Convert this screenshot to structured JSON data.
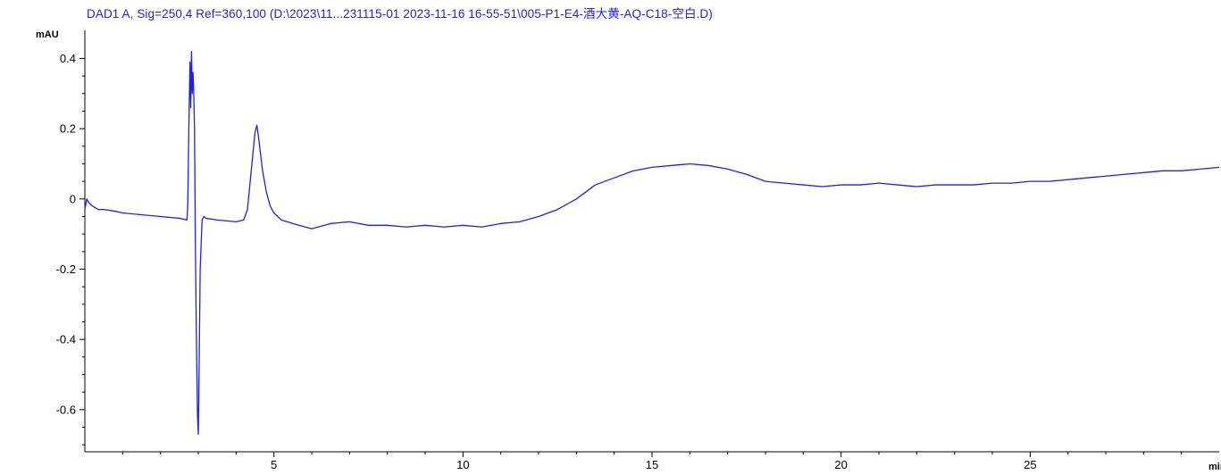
{
  "chart_data": {
    "type": "line",
    "title": "DAD1 A, Sig=250,4 Ref=360,100 (D:\\2023\\11...231115-01 2023-11-16 16-55-51\\005-P1-E4-酒大黄-AQ-C18-空白.D)",
    "xlabel": "min",
    "ylabel": "mAU",
    "xlim": [
      0,
      30
    ],
    "ylim": [
      -0.72,
      0.48
    ],
    "x_ticks": [
      5,
      10,
      15,
      20,
      25
    ],
    "x_tick_labels": [
      "5",
      "10",
      "15",
      "20",
      "25"
    ],
    "y_ticks": [
      -0.6,
      -0.4,
      -0.2,
      0,
      0.2,
      0.4
    ],
    "y_tick_labels": [
      "-0.6",
      "-0.4",
      "-0.2",
      "0",
      "0.2",
      "0.4"
    ],
    "grid": false,
    "line_color": "#2222dd",
    "series": [
      {
        "name": "",
        "x": [
          0,
          0.05,
          0.1,
          0.2,
          0.35,
          0.5,
          0.8,
          1.0,
          1.5,
          2.0,
          2.5,
          2.7,
          2.72,
          2.75,
          2.78,
          2.8,
          2.82,
          2.84,
          2.86,
          2.88,
          2.9,
          2.92,
          2.95,
          2.98,
          3.0,
          3.02,
          3.05,
          3.1,
          3.15,
          3.2,
          3.5,
          4.0,
          4.2,
          4.3,
          4.4,
          4.5,
          4.55,
          4.6,
          4.7,
          4.8,
          4.9,
          5.0,
          5.2,
          5.5,
          6.0,
          6.5,
          7.0,
          7.5,
          8.0,
          8.5,
          9.0,
          9.5,
          10.0,
          10.5,
          11.0,
          11.5,
          12.0,
          12.5,
          13.0,
          13.5,
          14.0,
          14.5,
          15.0,
          15.5,
          16.0,
          16.5,
          17.0,
          17.5,
          18.0,
          18.5,
          19.0,
          19.5,
          20.0,
          20.5,
          21.0,
          21.5,
          22.0,
          22.5,
          23.0,
          23.5,
          24.0,
          24.5,
          25.0,
          25.5,
          26.0,
          26.5,
          27.0,
          27.5,
          28.0,
          28.5,
          29.0,
          29.5,
          30.0
        ],
        "values": [
          -0.03,
          0.0,
          -0.01,
          -0.02,
          -0.03,
          -0.03,
          -0.035,
          -0.04,
          -0.045,
          -0.05,
          -0.055,
          -0.06,
          -0.02,
          0.2,
          0.39,
          0.26,
          0.42,
          0.3,
          0.36,
          0.3,
          0.2,
          -0.1,
          -0.4,
          -0.62,
          -0.67,
          -0.5,
          -0.2,
          -0.06,
          -0.05,
          -0.055,
          -0.06,
          -0.065,
          -0.06,
          -0.03,
          0.08,
          0.19,
          0.21,
          0.17,
          0.08,
          0.02,
          -0.02,
          -0.04,
          -0.06,
          -0.07,
          -0.085,
          -0.07,
          -0.065,
          -0.075,
          -0.075,
          -0.08,
          -0.075,
          -0.08,
          -0.075,
          -0.08,
          -0.07,
          -0.065,
          -0.05,
          -0.03,
          0.0,
          0.04,
          0.06,
          0.08,
          0.09,
          0.095,
          0.1,
          0.095,
          0.085,
          0.07,
          0.05,
          0.045,
          0.04,
          0.035,
          0.04,
          0.04,
          0.045,
          0.04,
          0.035,
          0.04,
          0.04,
          0.04,
          0.045,
          0.045,
          0.05,
          0.05,
          0.055,
          0.06,
          0.065,
          0.07,
          0.075,
          0.08,
          0.08,
          0.085,
          0.09
        ]
      }
    ]
  }
}
